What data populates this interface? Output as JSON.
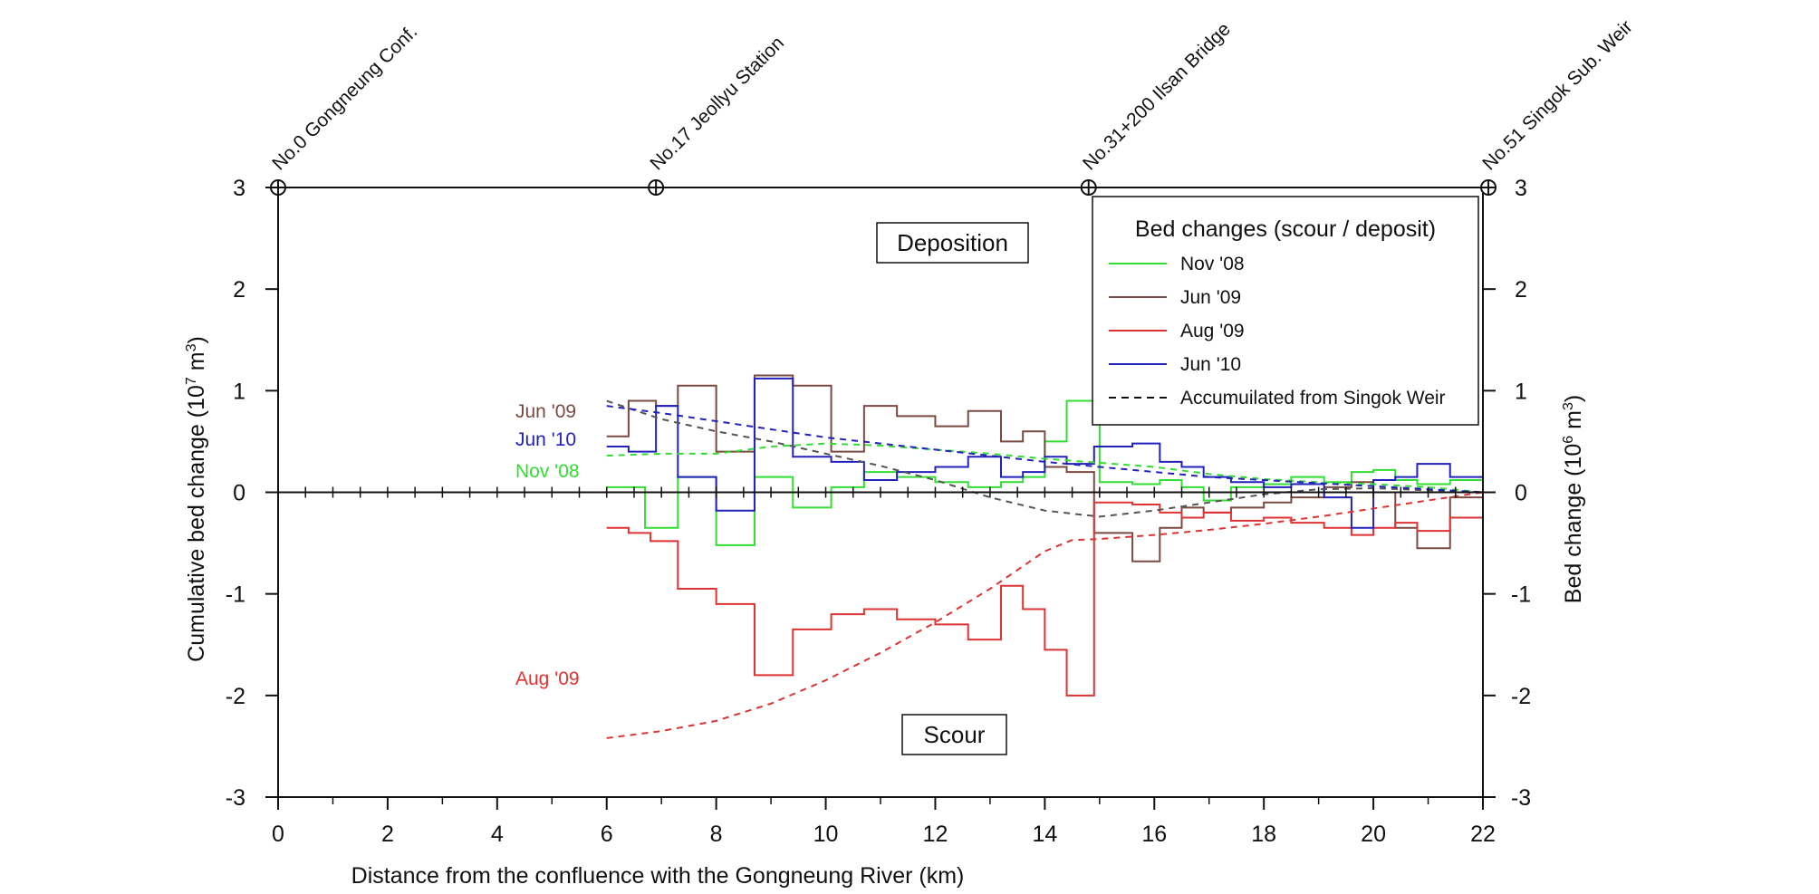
{
  "chart_data": {
    "type": "line",
    "title": "",
    "xlabel": "Distance from the confluence with the Gongneung River (km)",
    "ylabel_left": "Cumulative bed change (10^7 m^3)",
    "ylabel_left_base": "Cumulative bed change (10",
    "ylabel_left_exp": "7",
    "ylabel_left_unit": " m",
    "ylabel_left_unit_exp": "3",
    "ylabel_left_close": ")",
    "ylabel_right": "Bed change (10^6 m^3)",
    "ylabel_right_base": "Bed change (10",
    "ylabel_right_exp": "6",
    "ylabel_right_unit": " m",
    "ylabel_right_unit_exp": "3",
    "ylabel_right_close": ")",
    "xlim": [
      0,
      22
    ],
    "ylim": [
      -3,
      3
    ],
    "x_ticks": [
      "0",
      "2",
      "4",
      "6",
      "8",
      "10",
      "12",
      "14",
      "16",
      "18",
      "20",
      "22"
    ],
    "y_ticks_left": [
      "-3",
      "-2",
      "-1",
      "0",
      "1",
      "2",
      "3"
    ],
    "y_ticks_right": [
      "-3",
      "-2",
      "-1",
      "0",
      "1",
      "2",
      "3"
    ],
    "stations": [
      {
        "label": "No.0 Gongneung Conf.",
        "km": 0
      },
      {
        "label": "No.17 Jeollyu Station",
        "km": 6.9
      },
      {
        "label": "No.31+200 Ilsan Bridge",
        "km": 14.8
      },
      {
        "label": "No.51 Singok Sub. Weir",
        "km": 22.1
      }
    ],
    "annotations": {
      "deposition": "Deposition",
      "scour": "Scour"
    },
    "legend": {
      "title": "Bed changes (scour / deposit)",
      "placement": "top-right",
      "entries": [
        "Nov '08",
        "Jun '09",
        "Aug '09",
        "Jun '10",
        "Accumuilated from Singok Weir"
      ]
    },
    "series_labels": [
      {
        "text": "Jun '09",
        "color": "#7a4a42"
      },
      {
        "text": "Jun '10",
        "color": "#2222bb"
      },
      {
        "text": "Nov '08",
        "color": "#33dd33"
      },
      {
        "text": "Aug '09",
        "color": "#dd3333"
      }
    ],
    "series": [
      {
        "name": "Nov '08",
        "color": "#33dd33",
        "style": "step",
        "edges": [
          6,
          6.7,
          7.3,
          8.0,
          8.7,
          9.4,
          10.1,
          10.7,
          11.3,
          12.0,
          12.6,
          13.2,
          13.6,
          14.0,
          14.4,
          15.0,
          15.6,
          16.1,
          16.5,
          16.9,
          17.4,
          18.0,
          18.5,
          19.1,
          19.6,
          20.0,
          20.4,
          20.8,
          21.4,
          22.0
        ],
        "values": [
          0.05,
          -0.35,
          0.15,
          -0.52,
          0.15,
          -0.15,
          0.05,
          0.2,
          0.15,
          0.1,
          0.05,
          0.1,
          0.15,
          0.5,
          0.9,
          0.1,
          0.08,
          0.12,
          0.05,
          -0.08,
          0.05,
          0.08,
          0.15,
          0.1,
          0.2,
          0.22,
          0.12,
          0.08,
          0.12
        ]
      },
      {
        "name": "Jun '09",
        "color": "#7a4a42",
        "style": "step",
        "edges": [
          6,
          6.4,
          6.9,
          7.3,
          8.0,
          8.7,
          9.4,
          10.1,
          10.7,
          11.3,
          12.0,
          12.6,
          13.2,
          13.6,
          14.0,
          14.4,
          14.9,
          15.6,
          16.1,
          16.5,
          16.9,
          17.4,
          18.0,
          18.5,
          19.1,
          19.6,
          20.0,
          20.4,
          20.8,
          21.4,
          22.0
        ],
        "values": [
          0.55,
          0.9,
          0.85,
          1.05,
          0.4,
          1.15,
          1.05,
          0.4,
          0.85,
          0.75,
          0.65,
          0.8,
          0.5,
          0.6,
          0.25,
          0.2,
          -0.4,
          -0.68,
          -0.35,
          -0.15,
          -0.2,
          -0.15,
          -0.1,
          -0.05,
          0.05,
          0.1,
          0.0,
          -0.35,
          -0.55,
          -0.05
        ]
      },
      {
        "name": "Aug '09",
        "color": "#dd3333",
        "style": "step",
        "edges": [
          6,
          6.4,
          6.8,
          7.3,
          8.0,
          8.7,
          9.4,
          10.1,
          10.7,
          11.3,
          12.0,
          12.6,
          13.2,
          13.6,
          14.0,
          14.4,
          14.9,
          15.6,
          16.1,
          16.5,
          16.9,
          17.4,
          18.0,
          18.5,
          19.1,
          19.6,
          20.0,
          20.4,
          20.8,
          21.4,
          22.0
        ],
        "values": [
          -0.35,
          -0.4,
          -0.48,
          -0.95,
          -1.1,
          -1.8,
          -1.35,
          -1.2,
          -1.15,
          -1.25,
          -1.3,
          -1.45,
          -0.92,
          -1.15,
          -1.55,
          -2.0,
          -0.1,
          -0.12,
          -0.2,
          -0.25,
          -0.2,
          -0.28,
          -0.25,
          -0.3,
          -0.35,
          -0.42,
          -0.35,
          -0.3,
          -0.38,
          -0.25
        ]
      },
      {
        "name": "Jun '10",
        "color": "#2222bb",
        "style": "step",
        "edges": [
          6,
          6.4,
          6.9,
          7.3,
          8.0,
          8.7,
          9.4,
          10.1,
          10.7,
          11.3,
          12.0,
          12.6,
          13.2,
          13.6,
          14.0,
          14.4,
          14.9,
          15.6,
          16.1,
          16.5,
          16.9,
          17.4,
          18.0,
          18.5,
          19.1,
          19.6,
          20.0,
          20.4,
          20.8,
          21.4,
          22.0
        ],
        "values": [
          0.45,
          0.4,
          0.85,
          0.15,
          -0.18,
          1.12,
          0.35,
          0.3,
          0.12,
          0.2,
          0.25,
          0.35,
          0.15,
          0.2,
          0.35,
          0.28,
          0.45,
          0.48,
          0.3,
          0.25,
          0.15,
          0.1,
          0.05,
          0.08,
          -0.05,
          -0.35,
          0.12,
          0.15,
          0.28,
          0.15
        ]
      },
      {
        "name": "Accumulated Nov '08",
        "color": "#33dd33",
        "style": "dashed",
        "x": [
          6,
          7,
          8,
          9,
          10,
          11,
          12,
          13,
          14,
          15,
          16,
          17,
          18,
          19,
          20,
          21,
          22
        ],
        "y": [
          0.36,
          0.38,
          0.38,
          0.45,
          0.48,
          0.46,
          0.42,
          0.38,
          0.33,
          0.29,
          0.25,
          0.18,
          0.13,
          0.1,
          0.08,
          0.05,
          0.0
        ]
      },
      {
        "name": "Accumulated Jun '09",
        "color": "#555555",
        "style": "dashed",
        "x": [
          6,
          7,
          8,
          9,
          10,
          11,
          12,
          13,
          14,
          15,
          16,
          17,
          18,
          19,
          20,
          21,
          22
        ],
        "y": [
          0.9,
          0.72,
          0.6,
          0.5,
          0.38,
          0.26,
          0.12,
          -0.05,
          -0.18,
          -0.24,
          -0.18,
          -0.1,
          -0.02,
          0.03,
          0.04,
          0.02,
          0.0
        ]
      },
      {
        "name": "Accumulated Aug '09",
        "color": "#dd3333",
        "style": "dashed",
        "x": [
          6,
          7,
          8,
          9,
          10,
          11,
          12,
          13,
          14,
          14.5,
          15,
          16,
          17,
          18,
          19,
          20,
          21,
          22
        ],
        "y": [
          -2.42,
          -2.35,
          -2.25,
          -2.08,
          -1.85,
          -1.58,
          -1.28,
          -0.95,
          -0.58,
          -0.47,
          -0.46,
          -0.42,
          -0.37,
          -0.31,
          -0.24,
          -0.16,
          -0.08,
          0.0
        ]
      },
      {
        "name": "Accumulated Jun '10",
        "color": "#2222bb",
        "style": "dashed",
        "x": [
          6,
          7,
          8,
          9,
          10,
          11,
          12,
          13,
          14,
          15,
          16,
          17,
          18,
          19,
          20,
          21,
          22
        ],
        "y": [
          0.85,
          0.78,
          0.7,
          0.62,
          0.54,
          0.48,
          0.42,
          0.36,
          0.3,
          0.25,
          0.2,
          0.15,
          0.12,
          0.09,
          0.06,
          0.03,
          0.0
        ]
      }
    ]
  }
}
